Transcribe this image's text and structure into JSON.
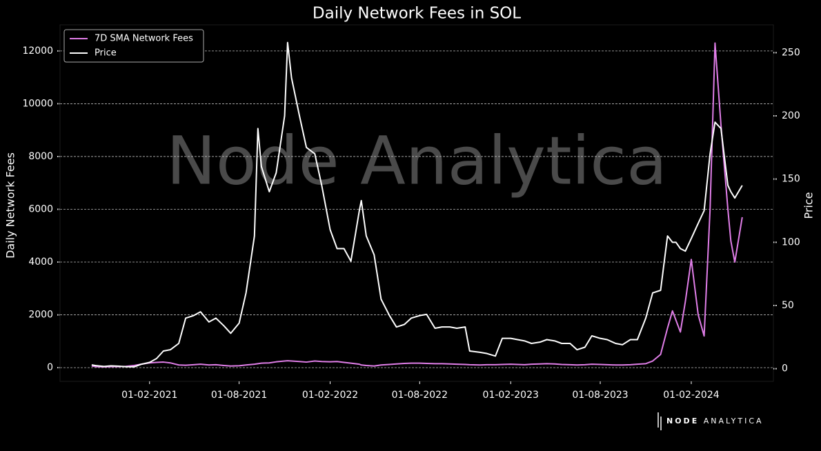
{
  "chart_data": {
    "type": "line",
    "title": "Daily Network Fees in SOL",
    "y_label": "Daily Network Fees",
    "y2_label": "Price",
    "watermark": "Node Analytica",
    "logo": [
      "NODE",
      "ANALYTICA"
    ],
    "x": [
      "2020-10-07",
      "2020-10-15",
      "2020-11-01",
      "2020-11-15",
      "2020-12-01",
      "2020-12-15",
      "2021-01-01",
      "2021-01-15",
      "2021-02-01",
      "2021-02-15",
      "2021-03-01",
      "2021-03-15",
      "2021-04-01",
      "2021-04-15",
      "2021-05-01",
      "2021-05-15",
      "2021-06-01",
      "2021-06-15",
      "2021-07-01",
      "2021-07-15",
      "2021-08-01",
      "2021-08-15",
      "2021-09-01",
      "2021-09-08",
      "2021-09-15",
      "2021-10-01",
      "2021-10-15",
      "2021-11-01",
      "2021-11-07",
      "2021-11-15",
      "2021-12-01",
      "2021-12-15",
      "2022-01-01",
      "2022-01-15",
      "2022-02-01",
      "2022-02-15",
      "2022-03-01",
      "2022-03-15",
      "2022-04-01",
      "2022-04-05",
      "2022-04-15",
      "2022-05-01",
      "2022-05-15",
      "2022-06-01",
      "2022-06-15",
      "2022-07-01",
      "2022-07-15",
      "2022-08-01",
      "2022-08-15",
      "2022-09-01",
      "2022-09-15",
      "2022-10-01",
      "2022-10-15",
      "2022-11-01",
      "2022-11-10",
      "2022-12-01",
      "2022-12-15",
      "2023-01-01",
      "2023-01-15",
      "2023-02-01",
      "2023-02-15",
      "2023-03-01",
      "2023-03-15",
      "2023-04-01",
      "2023-04-15",
      "2023-05-01",
      "2023-05-15",
      "2023-06-01",
      "2023-06-15",
      "2023-07-01",
      "2023-07-15",
      "2023-08-01",
      "2023-08-15",
      "2023-09-01",
      "2023-09-15",
      "2023-10-01",
      "2023-10-15",
      "2023-11-01",
      "2023-11-15",
      "2023-12-01",
      "2023-12-15",
      "2023-12-25",
      "2024-01-01",
      "2024-01-10",
      "2024-01-20",
      "2024-02-01",
      "2024-02-15",
      "2024-02-27",
      "2024-03-10",
      "2024-03-20",
      "2024-04-01",
      "2024-04-15",
      "2024-04-21",
      "2024-04-29",
      "2024-05-14"
    ],
    "series": [
      {
        "name": "7D SMA Network Fees",
        "color": "#e07ee8",
        "values": [
          60,
          40,
          30,
          40,
          40,
          50,
          80,
          130,
          180,
          200,
          210,
          180,
          100,
          90,
          110,
          130,
          100,
          110,
          80,
          60,
          70,
          100,
          130,
          150,
          170,
          180,
          220,
          250,
          260,
          250,
          230,
          210,
          250,
          230,
          220,
          230,
          200,
          170,
          130,
          100,
          80,
          60,
          100,
          120,
          140,
          160,
          170,
          170,
          160,
          150,
          150,
          140,
          130,
          120,
          110,
          100,
          110,
          110,
          120,
          130,
          120,
          110,
          130,
          140,
          150,
          140,
          120,
          110,
          100,
          110,
          130,
          120,
          110,
          100,
          100,
          110,
          130,
          150,
          250,
          500,
          1500,
          2150,
          1800,
          1350,
          2500,
          4100,
          2000,
          1200,
          6000,
          12300,
          9200,
          6000,
          4800,
          4000,
          5700
        ]
      },
      {
        "name": "Price",
        "color": "#ffffff",
        "axis": "y2",
        "values": [
          3,
          2.5,
          1.8,
          2.3,
          2,
          1.6,
          1.5,
          3.5,
          5,
          8,
          14,
          15,
          20,
          40,
          42,
          45,
          37,
          40,
          34,
          28,
          36,
          60,
          105,
          190,
          160,
          140,
          155,
          200,
          258,
          230,
          200,
          175,
          170,
          145,
          110,
          95,
          95,
          85,
          125,
          133,
          105,
          90,
          55,
          42,
          33,
          35,
          40,
          42,
          43,
          32,
          33,
          33,
          32,
          33,
          14,
          13,
          12,
          10,
          24,
          24,
          23,
          22,
          20,
          21,
          23,
          22,
          20,
          20,
          15,
          17,
          26,
          24,
          23,
          20,
          19,
          23,
          23,
          40,
          60,
          62,
          105,
          100,
          100,
          95,
          93,
          103,
          115,
          125,
          170,
          195,
          190,
          145,
          140,
          135,
          145
        ]
      }
    ],
    "xlim": [
      "2020-08-04",
      "2024-07-16"
    ],
    "xticks": [
      {
        "value": "2021-02-01",
        "label": "01-02-2021"
      },
      {
        "value": "2021-08-01",
        "label": "01-08-2021"
      },
      {
        "value": "2022-02-01",
        "label": "01-02-2022"
      },
      {
        "value": "2022-08-01",
        "label": "01-08-2022"
      },
      {
        "value": "2023-02-01",
        "label": "01-02-2023"
      },
      {
        "value": "2023-08-01",
        "label": "01-08-2023"
      },
      {
        "value": "2024-02-01",
        "label": "01-02-2024"
      }
    ],
    "ylim": [
      -520,
      12990
    ],
    "yticks": [
      0,
      2000,
      4000,
      6000,
      8000,
      10000,
      12000
    ],
    "y2lim": [
      -10,
      272
    ],
    "y2ticks": [
      0,
      50,
      100,
      150,
      200,
      250
    ],
    "grid": true,
    "legend": "upper-left"
  }
}
